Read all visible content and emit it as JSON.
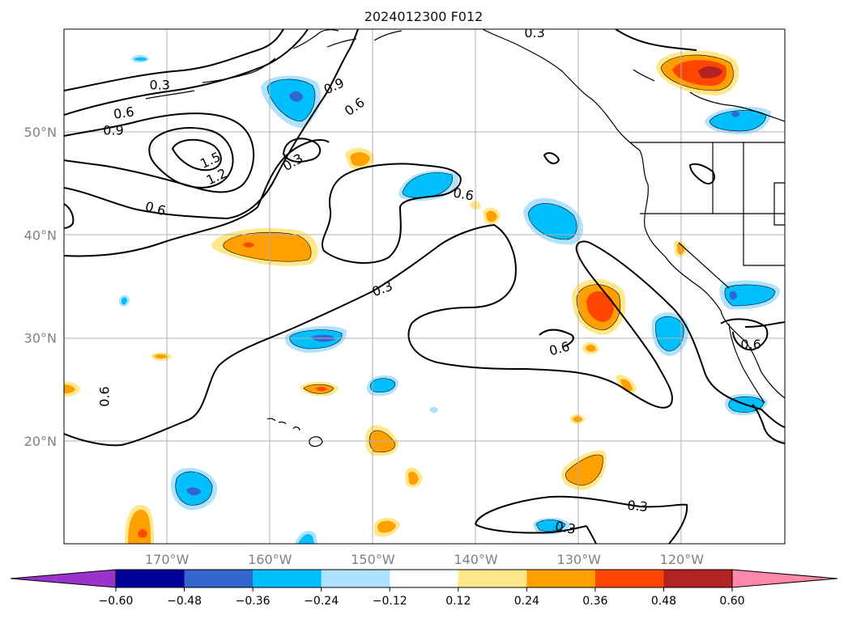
{
  "title": "2024012300 F012",
  "map": {
    "projection": "plate carree",
    "lon_range": [
      -180,
      -110
    ],
    "lat_range": [
      10,
      60
    ],
    "grid": true,
    "x_ticks": [
      {
        "lon": -170,
        "label": "170°W"
      },
      {
        "lon": -160,
        "label": "160°W"
      },
      {
        "lon": -150,
        "label": "150°W"
      },
      {
        "lon": -140,
        "label": "140°W"
      },
      {
        "lon": -130,
        "label": "130°W"
      },
      {
        "lon": -120,
        "label": "120°W"
      }
    ],
    "y_ticks": [
      {
        "lat": 20,
        "label": "20°N"
      },
      {
        "lat": 30,
        "label": "30°N"
      },
      {
        "lat": 40,
        "label": "40°N"
      },
      {
        "lat": 50,
        "label": "50°N"
      }
    ]
  },
  "colorbar": {
    "orientation": "horizontal",
    "extend": "both",
    "levels": [
      -0.6,
      -0.48,
      -0.36,
      -0.24,
      -0.12,
      0.12,
      0.24,
      0.36,
      0.48,
      0.6
    ],
    "tick_labels": [
      "−0.60",
      "−0.48",
      "−0.36",
      "−0.24",
      "−0.12",
      "0.12",
      "0.24",
      "0.36",
      "0.48",
      "0.60"
    ],
    "colors": [
      "#9933cc",
      "#000099",
      "#3366cc",
      "#00bfff",
      "#aee2ff",
      "#ffffff",
      "#ffe88a",
      "#ffa000",
      "#ff4500",
      "#b22222",
      "#ff88aa"
    ]
  },
  "contour_labels": [
    {
      "text": "0.3",
      "lon": -170.7,
      "lat": 54.6,
      "rot": 0
    },
    {
      "text": "0.6",
      "lon": -174.2,
      "lat": 51.9,
      "rot": -8
    },
    {
      "text": "0.9",
      "lon": -175.2,
      "lat": 50.2,
      "rot": 0
    },
    {
      "text": "1.5",
      "lon": -165.8,
      "lat": 47.3,
      "rot": -25
    },
    {
      "text": "1.2",
      "lon": -165.2,
      "lat": 45.7,
      "rot": -25
    },
    {
      "text": "0.6",
      "lon": -171.1,
      "lat": 42.6,
      "rot": 15
    },
    {
      "text": "0.9",
      "lon": -153.8,
      "lat": 54.5,
      "rot": -25
    },
    {
      "text": "0.6",
      "lon": -151.8,
      "lat": 52.5,
      "rot": -35
    },
    {
      "text": "0.3",
      "lon": -157.8,
      "lat": 47.1,
      "rot": -30
    },
    {
      "text": "0.6",
      "lon": -141.2,
      "lat": 44.0,
      "rot": 10
    },
    {
      "text": "0.3",
      "lon": -149.1,
      "lat": 34.8,
      "rot": -20
    },
    {
      "text": "0.6",
      "lon": -131.9,
      "lat": 29.0,
      "rot": -15
    },
    {
      "text": "0.6",
      "lon": -176.1,
      "lat": 24.3,
      "rot": -90
    },
    {
      "text": "0.6",
      "lon": -113.3,
      "lat": 29.4,
      "rot": 0
    },
    {
      "text": "0.3",
      "lon": -131.3,
      "lat": 11.6,
      "rot": 10
    },
    {
      "text": "0.3",
      "lon": -124.3,
      "lat": 13.7,
      "rot": 5
    },
    {
      "text": "0.3",
      "lon": -134.3,
      "lat": 59.7,
      "rot": 0
    }
  ]
}
